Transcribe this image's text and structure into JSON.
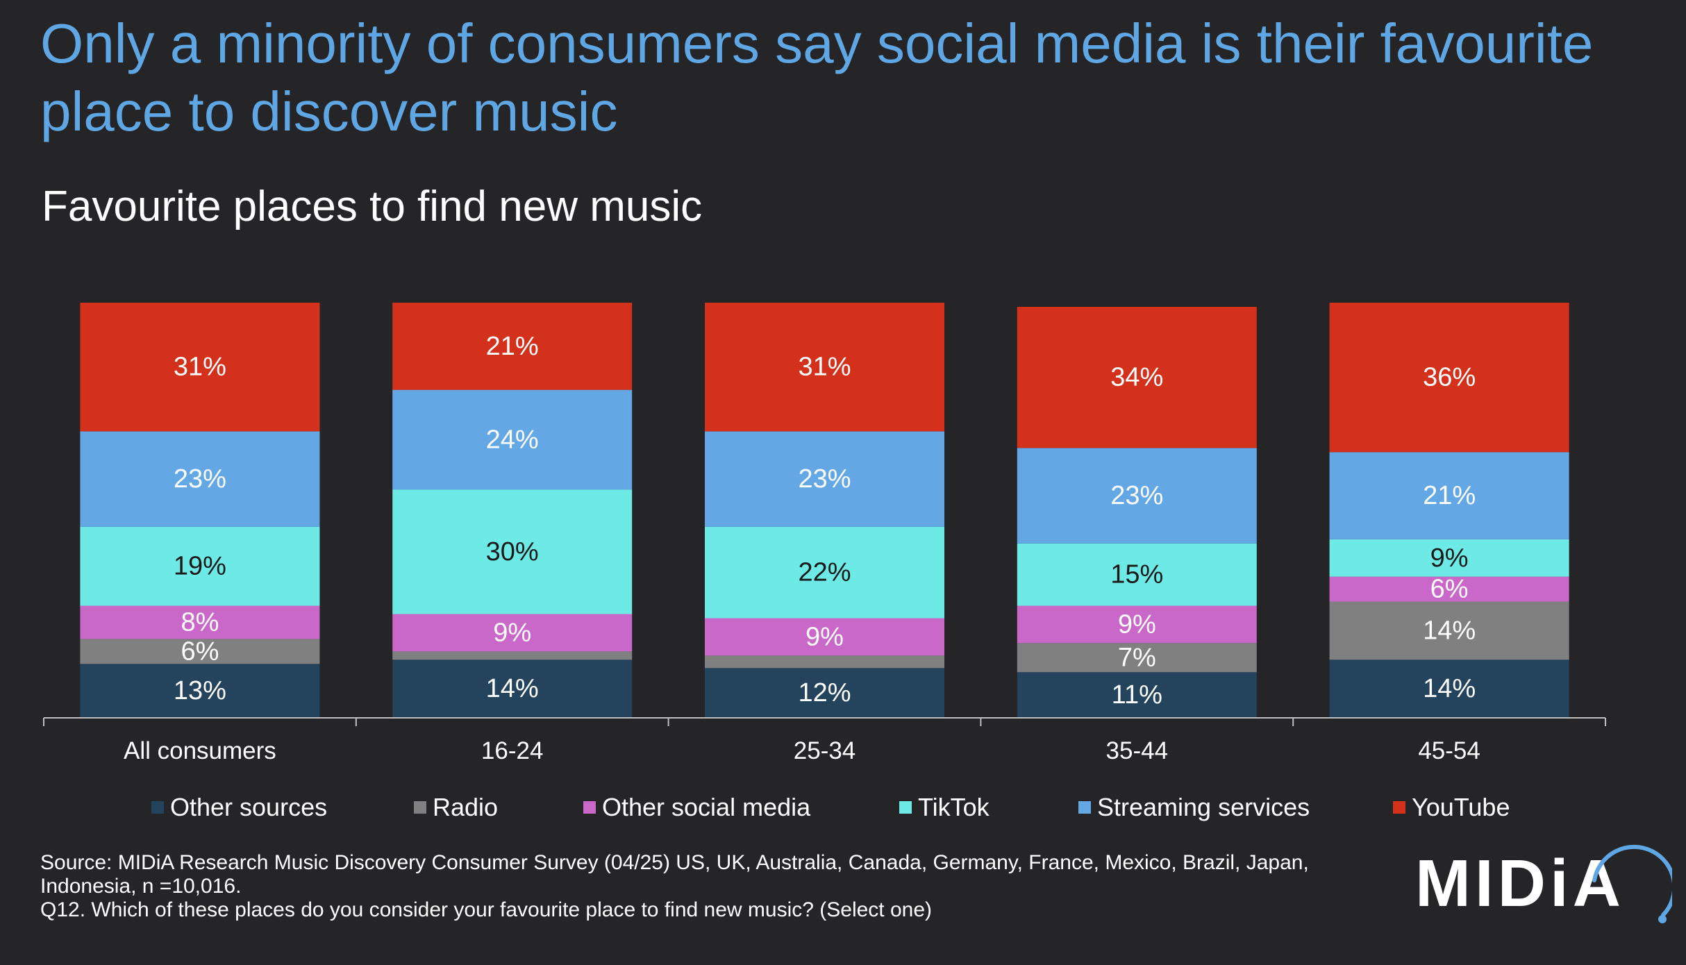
{
  "title": "Only a minority of consumers say social media is their favourite place to discover music",
  "subtitle": "Favourite places to find new music",
  "source": {
    "line1": "Source: MIDiA Research Music Discovery Consumer Survey (04/25) US, UK, Australia, Canada, Germany, France, Mexico, Brazil, Japan,",
    "line2": "Indonesia, n =10,016.",
    "line3": "Q12. Which of these places do you consider your favourite place to find new music? (Select one)"
  },
  "logo": {
    "text": "MIDiA"
  },
  "colors": {
    "background": "#252527",
    "title": "#5fa7e4",
    "axis": "#bfbfbf"
  },
  "chart_data": {
    "type": "bar",
    "stacked": true,
    "categories": [
      "All consumers",
      "16-24",
      "25-34",
      "35-44",
      "45-54"
    ],
    "ylim": [
      0,
      100
    ],
    "series": [
      {
        "name": "Other sources",
        "color": "#24435c",
        "values": [
          13,
          14,
          12,
          11,
          14
        ],
        "labels": [
          "13%",
          "14%",
          "12%",
          "11%",
          "14%"
        ]
      },
      {
        "name": "Radio",
        "color": "#808080",
        "values": [
          6,
          2,
          3,
          7,
          14
        ],
        "labels": [
          "6%",
          "",
          "",
          "7%",
          "14%"
        ]
      },
      {
        "name": "Other social media",
        "color": "#c968c9",
        "values": [
          8,
          9,
          9,
          9,
          6
        ],
        "labels": [
          "8%",
          "9%",
          "9%",
          "9%",
          "6%"
        ]
      },
      {
        "name": "TikTok",
        "color": "#6deae6",
        "values": [
          19,
          30,
          22,
          15,
          9
        ],
        "labels": [
          "19%",
          "30%",
          "22%",
          "15%",
          "9%"
        ]
      },
      {
        "name": "Streaming services",
        "color": "#63a8e4",
        "values": [
          23,
          24,
          23,
          23,
          21
        ],
        "labels": [
          "23%",
          "24%",
          "23%",
          "23%",
          "21%"
        ]
      },
      {
        "name": "YouTube",
        "color": "#d4311c",
        "values": [
          31,
          21,
          31,
          34,
          36
        ],
        "labels": [
          "31%",
          "21%",
          "31%",
          "34%",
          "36%"
        ]
      }
    ],
    "label_text_colors": {
      "TikTok": "#1a1a1a",
      "default": "#ffffff"
    }
  }
}
